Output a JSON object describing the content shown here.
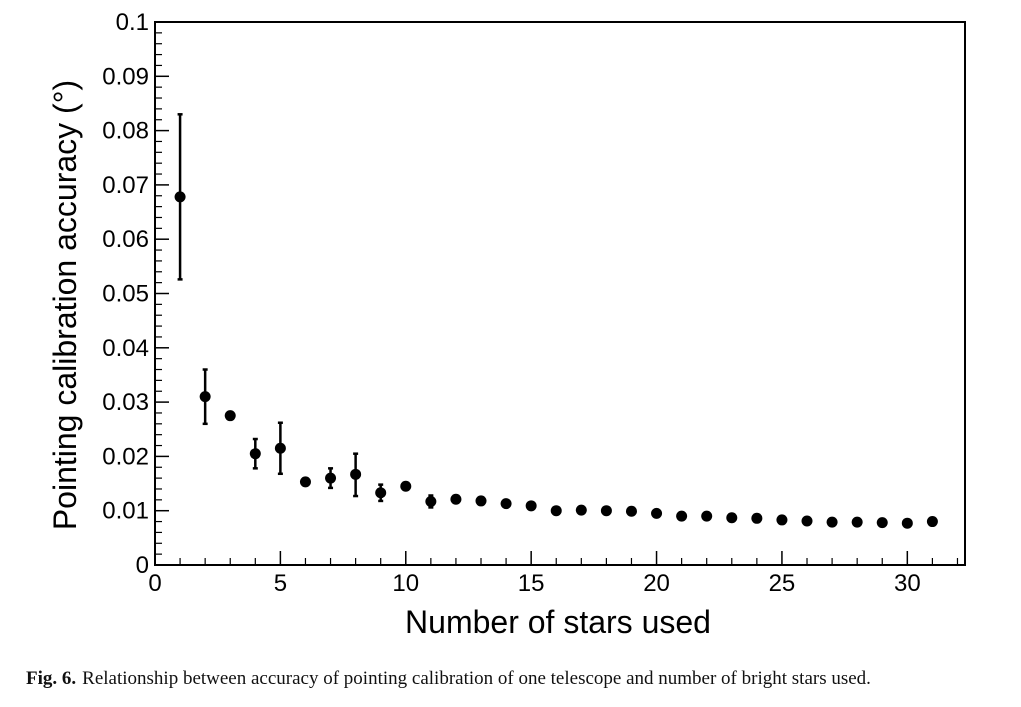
{
  "chart_data": {
    "type": "scatter",
    "title": "",
    "xlabel": "Number of stars used",
    "ylabel": "Pointing calibration accuracy (°)",
    "xlim": [
      0,
      32.3
    ],
    "ylim": [
      0,
      0.1
    ],
    "xticks": [
      0,
      5,
      10,
      15,
      20,
      25,
      30
    ],
    "yticks": [
      0,
      0.01,
      0.02,
      0.03,
      0.04,
      0.05,
      0.06,
      0.07,
      0.08,
      0.09,
      0.1
    ],
    "xtick_labels": [
      "0",
      "5",
      "10",
      "15",
      "20",
      "25",
      "30"
    ],
    "ytick_labels": [
      "0",
      "0.01",
      "0.02",
      "0.03",
      "0.04",
      "0.05",
      "0.06",
      "0.07",
      "0.08",
      "0.09",
      "0.1"
    ],
    "grid": false,
    "points": [
      {
        "x": 1,
        "y": 0.0678,
        "ylo": 0.0526,
        "yhi": 0.083
      },
      {
        "x": 2,
        "y": 0.031,
        "ylo": 0.026,
        "yhi": 0.036
      },
      {
        "x": 3,
        "y": 0.0275
      },
      {
        "x": 4,
        "y": 0.0205,
        "ylo": 0.0178,
        "yhi": 0.0232
      },
      {
        "x": 5,
        "y": 0.0215,
        "ylo": 0.0168,
        "yhi": 0.0262
      },
      {
        "x": 6,
        "y": 0.0153
      },
      {
        "x": 7,
        "y": 0.016,
        "ylo": 0.0142,
        "yhi": 0.0178
      },
      {
        "x": 8,
        "y": 0.0167,
        "ylo": 0.0127,
        "yhi": 0.0205
      },
      {
        "x": 9,
        "y": 0.0133,
        "ylo": 0.0118,
        "yhi": 0.0148
      },
      {
        "x": 10,
        "y": 0.0145
      },
      {
        "x": 11,
        "y": 0.0117,
        "ylo": 0.0106,
        "yhi": 0.0128
      },
      {
        "x": 12,
        "y": 0.0121
      },
      {
        "x": 13,
        "y": 0.0118
      },
      {
        "x": 14,
        "y": 0.0113
      },
      {
        "x": 15,
        "y": 0.0109
      },
      {
        "x": 16,
        "y": 0.01
      },
      {
        "x": 17,
        "y": 0.0101
      },
      {
        "x": 18,
        "y": 0.01
      },
      {
        "x": 19,
        "y": 0.0099
      },
      {
        "x": 20,
        "y": 0.0095
      },
      {
        "x": 21,
        "y": 0.009
      },
      {
        "x": 22,
        "y": 0.009
      },
      {
        "x": 23,
        "y": 0.0087
      },
      {
        "x": 24,
        "y": 0.0086
      },
      {
        "x": 25,
        "y": 0.0083
      },
      {
        "x": 26,
        "y": 0.0081
      },
      {
        "x": 27,
        "y": 0.0079
      },
      {
        "x": 28,
        "y": 0.0079
      },
      {
        "x": 29,
        "y": 0.0078
      },
      {
        "x": 30,
        "y": 0.0077
      },
      {
        "x": 31,
        "y": 0.008
      }
    ],
    "marker_color": "#000000"
  },
  "caption": {
    "label": "Fig. 6.",
    "text": "Relationship between accuracy of pointing calibration of one telescope and number of bright stars used."
  }
}
